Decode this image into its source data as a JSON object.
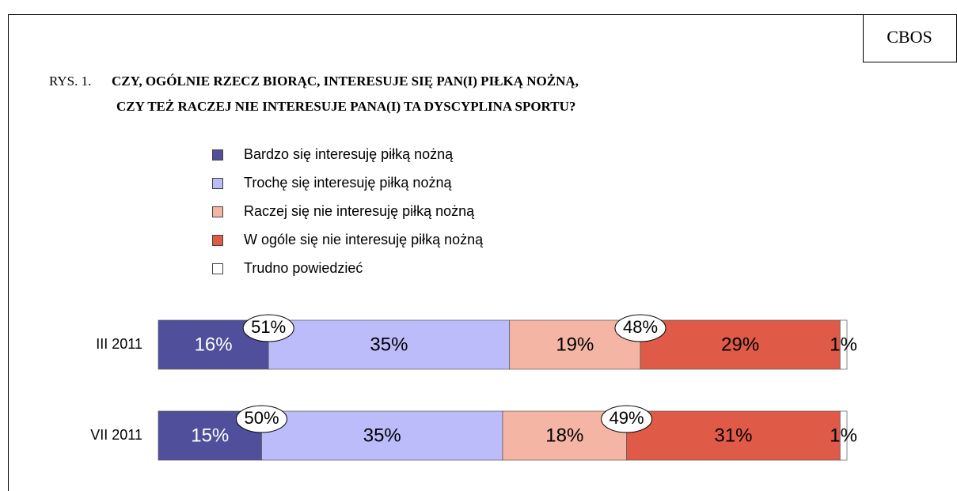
{
  "chart_data": {
    "type": "stacked_bar_horizontal",
    "header": "CBOS",
    "title_prefix": "RYS. 1.",
    "title": [
      "CZY, OGÓLNIE RZECZ BIORĄC, INTERESUJE SIĘ PAN(I) PIŁKĄ NOŻNĄ,",
      "CZY TEŻ RACZEJ NIE INTERESUJE PANA(I) TA DYSCYPLINA SPORTU?"
    ],
    "categories": [
      "III 2011",
      "VII 2011"
    ],
    "series": [
      {
        "name": "Bardzo się interesuję piłką nożną",
        "color": "#4f4f9b",
        "values": [
          16,
          15
        ],
        "value_labels": [
          "16%",
          "15%"
        ]
      },
      {
        "name": "Trochę się interesuję piłką nożną",
        "color": "#bcbcfa",
        "values": [
          35,
          35
        ],
        "value_labels": [
          "35%",
          "35%"
        ]
      },
      {
        "name": "Raczej się nie interesuję piłką nożną",
        "color": "#f5b5a5",
        "values": [
          19,
          18
        ],
        "value_labels": [
          "19%",
          "18%"
        ]
      },
      {
        "name": "W ogóle się nie interesuję piłką nożną",
        "color": "#e05a48",
        "values": [
          29,
          31
        ],
        "value_labels": [
          "29%",
          "31%"
        ]
      },
      {
        "name": "Trudno powiedzieć",
        "color": "#ffffff",
        "values": [
          1,
          1
        ],
        "value_labels": [
          "1%",
          "1%"
        ]
      }
    ],
    "callouts": [
      [
        "51%",
        "48%"
      ],
      [
        "50%",
        "49%"
      ]
    ]
  }
}
